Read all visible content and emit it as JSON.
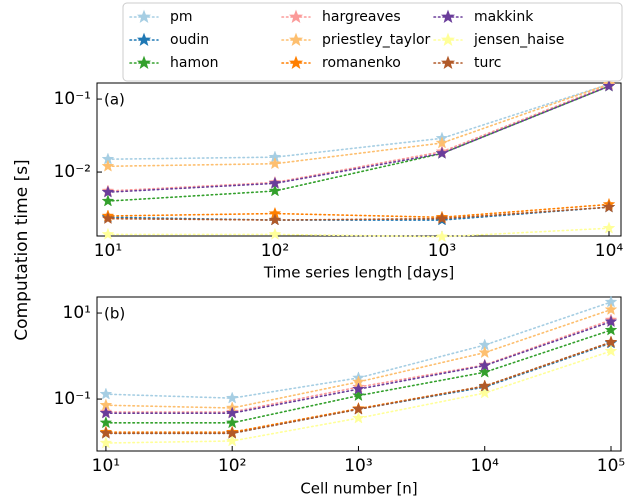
{
  "chart_data": [
    {
      "type": "line",
      "panel_label": "(a)",
      "xlabel": "Time series length [days]",
      "ylabel": "Computation time [s]",
      "xscale": "log",
      "yscale": "log",
      "legend": true,
      "legend_loc": "upper center",
      "xlim": [
        8.6,
        11800
      ],
      "ylim": [
        0.00133,
        0.166
      ],
      "xticks": [
        {
          "value": 10,
          "label": "10¹"
        },
        {
          "value": 100,
          "label": "10²"
        },
        {
          "value": 1000,
          "label": "10³"
        },
        {
          "value": 10000,
          "label": "10⁴"
        }
      ],
      "yticks": [
        {
          "value": 0.01,
          "label": "10⁻²"
        },
        {
          "value": 0.1,
          "label": "10⁻¹"
        }
      ],
      "x": [
        10,
        100,
        1000,
        10000
      ],
      "series": [
        {
          "name": "pm",
          "color": "#a6cee3",
          "values": [
            0.015,
            0.016,
            0.029,
            0.16
          ]
        },
        {
          "name": "oudin",
          "color": "#1f78b4",
          "values": [
            0.0024,
            0.0022,
            0.0022,
            0.0033
          ]
        },
        {
          "name": "hamon",
          "color": "#33a02c",
          "values": [
            0.004,
            0.0055,
            0.018,
            0.15
          ]
        },
        {
          "name": "hargreaves",
          "color": "#fb9a99",
          "values": [
            0.0055,
            0.0072,
            0.019,
            0.155
          ]
        },
        {
          "name": "priestley_taylor",
          "color": "#fdbf6f",
          "values": [
            0.012,
            0.013,
            0.025,
            0.16
          ]
        },
        {
          "name": "romanenko",
          "color": "#ff7f00",
          "values": [
            0.0025,
            0.0027,
            0.0024,
            0.0036
          ]
        },
        {
          "name": "makkink",
          "color": "#6a3d9a",
          "values": [
            0.0053,
            0.007,
            0.018,
            0.15
          ]
        },
        {
          "name": "jensen_haise",
          "color": "#ffff99",
          "values": [
            0.0014,
            0.0014,
            0.0013,
            0.0017
          ]
        },
        {
          "name": "turc",
          "color": "#b15928",
          "values": [
            0.0023,
            0.0022,
            0.0023,
            0.0033
          ]
        }
      ]
    },
    {
      "type": "line",
      "panel_label": "(b)",
      "xlabel": "Cell number [n]",
      "xscale": "log",
      "yscale": "log",
      "xlim": [
        8.5,
        120000
      ],
      "ylim": [
        0.0062,
        23.6
      ],
      "xticks": [
        {
          "value": 10,
          "label": "10¹"
        },
        {
          "value": 100,
          "label": "10²"
        },
        {
          "value": 1000,
          "label": "10³"
        },
        {
          "value": 10000,
          "label": "10⁴"
        },
        {
          "value": 100000,
          "label": "10⁵"
        }
      ],
      "yticks": [
        {
          "value": 0.1,
          "label": "10⁻¹"
        },
        {
          "value": 10,
          "label": "10¹"
        }
      ],
      "x": [
        10,
        100,
        1000,
        10000,
        100000
      ],
      "series": [
        {
          "color": "#a6cee3",
          "values": [
            0.13,
            0.105,
            0.31,
            1.8,
            18
          ]
        },
        {
          "color": "#1f78b4",
          "values": [
            0.016,
            0.016,
            0.058,
            0.19,
            2.0
          ]
        },
        {
          "color": "#33a02c",
          "values": [
            0.028,
            0.028,
            0.12,
            0.42,
            4
          ]
        },
        {
          "color": "#fb9a99",
          "values": [
            0.05,
            0.05,
            0.19,
            0.62,
            6.9
          ]
        },
        {
          "color": "#fdbf6f",
          "values": [
            0.072,
            0.062,
            0.25,
            1.2,
            12
          ]
        },
        {
          "color": "#ff7f00",
          "values": [
            0.017,
            0.017,
            0.06,
            0.2,
            2.1
          ]
        },
        {
          "color": "#6a3d9a",
          "values": [
            0.047,
            0.047,
            0.17,
            0.6,
            6.3
          ]
        },
        {
          "color": "#ffff99",
          "values": [
            0.0095,
            0.0106,
            0.036,
            0.138,
            1.3
          ]
        },
        {
          "color": "#b15928",
          "values": [
            0.016,
            0.016,
            0.058,
            0.2,
            2.1
          ]
        }
      ]
    }
  ]
}
